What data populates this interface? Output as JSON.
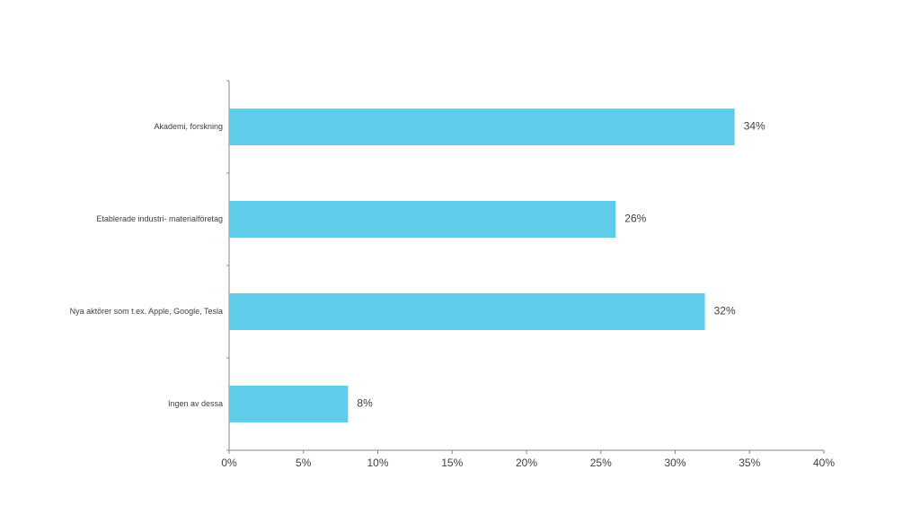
{
  "chart_data": {
    "type": "bar",
    "orientation": "horizontal",
    "categories": [
      "Akademi, forskning",
      "Etablerade industri- materialföretag",
      "Nya aktörer som t.ex. Apple, Google, Tesla",
      "Ingen av dessa"
    ],
    "values": [
      34,
      26,
      32,
      8
    ],
    "value_labels": [
      "34%",
      "26%",
      "32%",
      "8%"
    ],
    "color": "#5fcdea",
    "xlim": [
      0,
      40
    ],
    "xticks": [
      {
        "value": 0,
        "label": "0%"
      },
      {
        "value": 5,
        "label": "5%"
      },
      {
        "value": 10,
        "label": "10%"
      },
      {
        "value": 15,
        "label": "15%"
      },
      {
        "value": 20,
        "label": "20%"
      },
      {
        "value": 25,
        "label": "25%"
      },
      {
        "value": 30,
        "label": "30%"
      },
      {
        "value": 35,
        "label": "35%"
      },
      {
        "value": 40,
        "label": "40%"
      }
    ]
  }
}
